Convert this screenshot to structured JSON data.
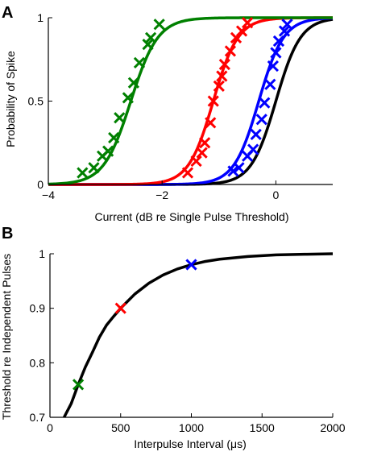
{
  "chart_data": [
    {
      "panel_label": "A",
      "type": "line",
      "xlabel": "Current (dB re Single Pulse Threshold)",
      "ylabel": "Probability of Spike",
      "xlim": [
        -4,
        1
      ],
      "ylim": [
        0,
        1
      ],
      "xticks": [
        -4,
        -2,
        0
      ],
      "xtick_labels": [
        "−4",
        "−2",
        "0"
      ],
      "yticks": [
        0,
        0.5,
        1
      ],
      "ytick_labels": [
        "0",
        "0.5",
        "1"
      ],
      "grid": false,
      "legend": "none",
      "series": [
        {
          "color": "#008000",
          "curve": {
            "midpoint": -2.55,
            "slope": 4.2
          },
          "points": [
            {
              "x": -3.4,
              "y": 0.07
            },
            {
              "x": -3.2,
              "y": 0.1
            },
            {
              "x": -3.05,
              "y": 0.17
            },
            {
              "x": -2.95,
              "y": 0.2
            },
            {
              "x": -2.85,
              "y": 0.28
            },
            {
              "x": -2.75,
              "y": 0.4
            },
            {
              "x": -2.6,
              "y": 0.52
            },
            {
              "x": -2.5,
              "y": 0.61
            },
            {
              "x": -2.4,
              "y": 0.73
            },
            {
              "x": -2.25,
              "y": 0.84
            },
            {
              "x": -2.2,
              "y": 0.88
            },
            {
              "x": -2.05,
              "y": 0.96
            }
          ]
        },
        {
          "color": "#ff0000",
          "curve": {
            "midpoint": -1.1,
            "slope": 4.6
          },
          "points": [
            {
              "x": -1.55,
              "y": 0.07
            },
            {
              "x": -1.4,
              "y": 0.14
            },
            {
              "x": -1.3,
              "y": 0.19
            },
            {
              "x": -1.25,
              "y": 0.25
            },
            {
              "x": -1.15,
              "y": 0.37
            },
            {
              "x": -1.1,
              "y": 0.5
            },
            {
              "x": -1.0,
              "y": 0.59
            },
            {
              "x": -0.95,
              "y": 0.65
            },
            {
              "x": -0.9,
              "y": 0.72
            },
            {
              "x": -0.8,
              "y": 0.8
            },
            {
              "x": -0.7,
              "y": 0.88
            },
            {
              "x": -0.6,
              "y": 0.92
            },
            {
              "x": -0.5,
              "y": 0.97
            }
          ]
        },
        {
          "color": "#0000ff",
          "curve": {
            "midpoint": -0.3,
            "slope": 4.6
          },
          "points": [
            {
              "x": -0.75,
              "y": 0.08
            },
            {
              "x": -0.65,
              "y": 0.1
            },
            {
              "x": -0.5,
              "y": 0.17
            },
            {
              "x": -0.4,
              "y": 0.21
            },
            {
              "x": -0.35,
              "y": 0.3
            },
            {
              "x": -0.25,
              "y": 0.39
            },
            {
              "x": -0.2,
              "y": 0.49
            },
            {
              "x": -0.1,
              "y": 0.6
            },
            {
              "x": -0.05,
              "y": 0.71
            },
            {
              "x": 0.0,
              "y": 0.79
            },
            {
              "x": 0.05,
              "y": 0.86
            },
            {
              "x": 0.15,
              "y": 0.92
            },
            {
              "x": 0.2,
              "y": 0.96
            }
          ]
        },
        {
          "color": "#000000",
          "curve": {
            "midpoint": 0.0,
            "slope": 4.6
          },
          "points": []
        }
      ]
    },
    {
      "panel_label": "B",
      "type": "line",
      "xlabel": "Interpulse Interval (μs)",
      "ylabel": "Threshold re Independent Pulses",
      "xlim": [
        0,
        2000
      ],
      "ylim": [
        0.7,
        1
      ],
      "xticks": [
        0,
        500,
        1000,
        1500,
        2000
      ],
      "xtick_labels": [
        "0",
        "500",
        "1000",
        "1500",
        "2000"
      ],
      "yticks": [
        0.7,
        0.8,
        0.9,
        1
      ],
      "ytick_labels": [
        "0.7",
        "0.8",
        "0.9",
        "1"
      ],
      "grid": false,
      "legend": "none",
      "curve": {
        "color": "#000000",
        "x": [
          100,
          120,
          150,
          200,
          250,
          300,
          350,
          400,
          450,
          500,
          600,
          700,
          800,
          900,
          1000,
          1100,
          1200,
          1400,
          1600,
          1800,
          2000
        ],
        "y": [
          0.7,
          0.71,
          0.725,
          0.76,
          0.792,
          0.819,
          0.847,
          0.869,
          0.885,
          0.9,
          0.926,
          0.946,
          0.961,
          0.972,
          0.98,
          0.986,
          0.99,
          0.995,
          0.998,
          0.999,
          1.0
        ]
      },
      "markers": [
        {
          "x": 200,
          "y": 0.76,
          "color": "#008000"
        },
        {
          "x": 500,
          "y": 0.9,
          "color": "#ff0000"
        },
        {
          "x": 1000,
          "y": 0.98,
          "color": "#0000ff"
        }
      ]
    }
  ]
}
